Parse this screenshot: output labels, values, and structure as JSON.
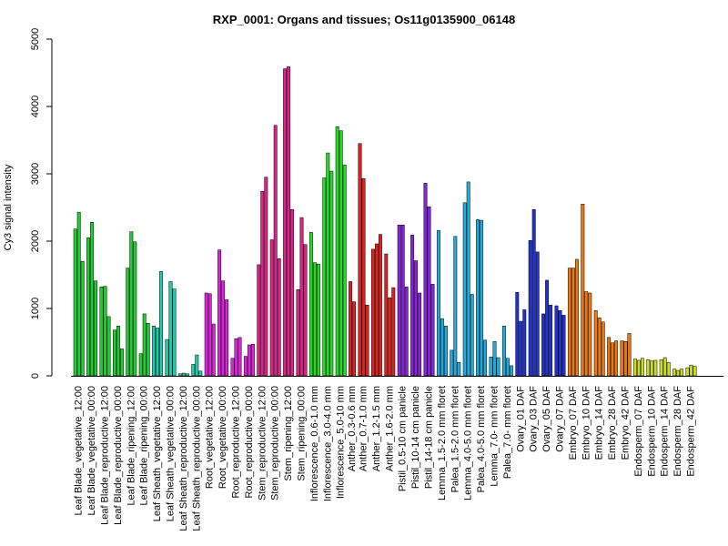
{
  "chart_data": {
    "type": "bar",
    "title": "RXP_0001: Organs and tissues; Os11g0135900_06148",
    "xlabel": "",
    "ylabel": "Cy3 signal intensity",
    "ylim": [
      0,
      5000
    ],
    "yticks": [
      0,
      1000,
      2000,
      3000,
      4000,
      5000
    ],
    "grid": false,
    "legend": "none",
    "groups": [
      {
        "label": "Leaf Blade_vegetative_12:00",
        "color": "#22cc33",
        "values": [
          2180,
          2430,
          1700
        ]
      },
      {
        "label": "Leaf Blade_vegetative_00:00",
        "color": "#22cc33",
        "values": [
          2050,
          2280,
          1410
        ]
      },
      {
        "label": "Leaf Blade_reproductive_12:00",
        "color": "#22cc33",
        "values": [
          1320,
          1330,
          880
        ]
      },
      {
        "label": "Leaf Blade_reproductive_00:00",
        "color": "#22cc33",
        "values": [
          680,
          740,
          400
        ]
      },
      {
        "label": "Leaf Blade_ripening_12:00",
        "color": "#22cc33",
        "values": [
          1600,
          2140,
          1990
        ]
      },
      {
        "label": "Leaf Blade_ripening_00:00",
        "color": "#22cc33",
        "values": [
          330,
          920,
          780
        ]
      },
      {
        "label": "Leaf Sheath_vegetative_12:00",
        "color": "#22ccaa",
        "values": [
          740,
          710,
          1550
        ]
      },
      {
        "label": "Leaf Sheath_vegetative_00:00",
        "color": "#22ccaa",
        "values": [
          540,
          1400,
          1290
        ]
      },
      {
        "label": "Leaf Sheath_reproductive_12:00",
        "color": "#22ccaa",
        "values": [
          30,
          40,
          30
        ]
      },
      {
        "label": "Leaf Sheath_reproductive_00:00",
        "color": "#22ccaa",
        "values": [
          170,
          310,
          70
        ]
      },
      {
        "label": "Root_vegetative_12:00",
        "color": "#dd22dd",
        "values": [
          1230,
          1220,
          770
        ]
      },
      {
        "label": "Root_vegetative_00:00",
        "color": "#dd22dd",
        "values": [
          1870,
          1410,
          1130
        ]
      },
      {
        "label": "Root_reproductive_12:00",
        "color": "#dd22dd",
        "values": [
          260,
          550,
          570
        ]
      },
      {
        "label": "Root_reproductive_00:00",
        "color": "#dd22dd",
        "values": [
          290,
          460,
          470
        ]
      },
      {
        "label": "Stem_reproductive_12:00",
        "color": "#dd2288",
        "values": [
          1650,
          2740,
          2950
        ]
      },
      {
        "label": "Stem_reproductive_00:00",
        "color": "#dd2288",
        "values": [
          2020,
          3720,
          1740
        ]
      },
      {
        "label": "Stem_ripening_12:00",
        "color": "#dd2288",
        "values": [
          4560,
          4590,
          2470
        ]
      },
      {
        "label": "Stem_ripening_00:00",
        "color": "#dd2288",
        "values": [
          1280,
          2350,
          1950
        ]
      },
      {
        "label": "Inflorescence_0.6-1.0 mm",
        "color": "#22dd22",
        "values": [
          2130,
          1680,
          1660
        ]
      },
      {
        "label": "Inflorescence_3.0-4.0 mm",
        "color": "#22dd22",
        "values": [
          2940,
          3310,
          3040
        ]
      },
      {
        "label": "Inflorescence_5.0-10 mm",
        "color": "#22dd22",
        "values": [
          3700,
          3640,
          3130
        ]
      },
      {
        "label": "Anther_0.3-0.6 mm",
        "color": "#dd2222",
        "values": [
          1400,
          1100
        ]
      },
      {
        "label": "Anther_0.7-1.0 mm",
        "color": "#dd2222",
        "values": [
          3450,
          2930,
          1050
        ]
      },
      {
        "label": "Anther_1.2-1.5 mm",
        "color": "#dd2222",
        "values": [
          1880,
          1960,
          2100
        ]
      },
      {
        "label": "Anther_1.6-2.0 mm",
        "color": "#dd2222",
        "values": [
          1810,
          1160,
          1310
        ]
      },
      {
        "label": "Pistil_0.5-10 cm panicle",
        "color": "#8822dd",
        "values": [
          2240,
          2240,
          1320
        ]
      },
      {
        "label": "Pistil_10-14 cm panicle",
        "color": "#8822dd",
        "values": [
          2090,
          1710,
          1230
        ]
      },
      {
        "label": "Pistil_14-18 cm panicle",
        "color": "#8822dd",
        "values": [
          2860,
          2510,
          1360
        ]
      },
      {
        "label": "Lemma_1.5-2.0 mm floret",
        "color": "#22aadd",
        "values": [
          2160,
          850,
          740
        ]
      },
      {
        "label": "Palea_1.5-2.0 mm floret",
        "color": "#22aadd",
        "values": [
          380,
          2070,
          200
        ]
      },
      {
        "label": "Lemma_4.0-5.0 mm floret",
        "color": "#22aadd",
        "values": [
          2570,
          2880,
          1210
        ]
      },
      {
        "label": "Palea_4.0-5.0 mm floret",
        "color": "#22aadd",
        "values": [
          2320,
          2310,
          530
        ]
      },
      {
        "label": "Lemma_7.0- mm floret",
        "color": "#22aadd",
        "values": [
          280,
          510,
          270
        ]
      },
      {
        "label": "Palea_7.0- mm floret",
        "color": "#22aadd",
        "values": [
          740,
          260,
          150
        ]
      },
      {
        "label": "Ovary_01 DAF",
        "color": "#2233cc",
        "values": [
          1240,
          810,
          980
        ]
      },
      {
        "label": "Ovary_03 DAF",
        "color": "#2233cc",
        "values": [
          2010,
          2470,
          1840
        ]
      },
      {
        "label": "Ovary_05 DAF",
        "color": "#2233cc",
        "values": [
          920,
          1420,
          1050
        ]
      },
      {
        "label": "Ovary_07 DAF",
        "color": "#2233cc",
        "values": [
          1040,
          970,
          900
        ]
      },
      {
        "label": "Embryo_07 DAF",
        "color": "#ee7711",
        "values": [
          1600,
          1600,
          1730
        ]
      },
      {
        "label": "Embryo_10 DAF",
        "color": "#ee7711",
        "values": [
          2550,
          1250,
          1230
        ]
      },
      {
        "label": "Embryo_14 DAF",
        "color": "#ee7711",
        "values": [
          970,
          860,
          800
        ]
      },
      {
        "label": "Embryo_28 DAF",
        "color": "#ee7711",
        "values": [
          570,
          490,
          520
        ]
      },
      {
        "label": "Embryo_42 DAF",
        "color": "#ee7711",
        "values": [
          520,
          510,
          630
        ]
      },
      {
        "label": "Endosperm_07 DAF",
        "color": "#ccdd22",
        "values": [
          250,
          230,
          260
        ]
      },
      {
        "label": "Endosperm_10 DAF",
        "color": "#ccdd22",
        "values": [
          240,
          220,
          230
        ]
      },
      {
        "label": "Endosperm_14 DAF",
        "color": "#ccdd22",
        "values": [
          240,
          270,
          200
        ]
      },
      {
        "label": "Endosperm_28 DAF",
        "color": "#ccdd22",
        "values": [
          100,
          80,
          100
        ]
      },
      {
        "label": "Endosperm_42 DAF",
        "color": "#ccdd22",
        "values": [
          120,
          160,
          140
        ]
      }
    ]
  }
}
